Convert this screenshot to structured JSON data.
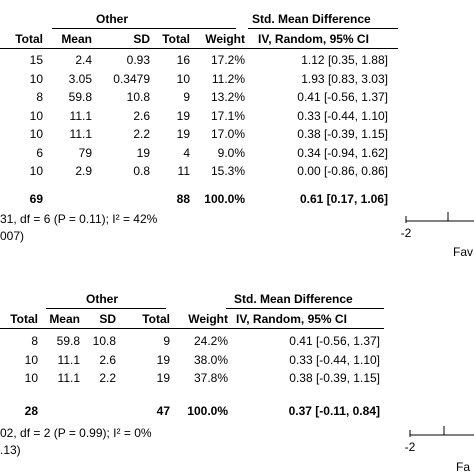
{
  "chart_data": [
    {
      "type": "table",
      "group_header": "Other",
      "effect_header": "Std. Mean Difference",
      "columns": [
        "Total",
        "Mean",
        "SD",
        "Total",
        "Weight",
        "IV, Random, 95% CI"
      ],
      "rows": [
        {
          "total1": "15",
          "mean": "2.4",
          "sd": "0.93",
          "total2": "16",
          "weight": "17.2%",
          "ci": "1.12 [0.35, 1.88]",
          "est": 1.12,
          "lo": 0.35,
          "hi": 1.88
        },
        {
          "total1": "10",
          "mean": "3.05",
          "sd": "0.3479",
          "total2": "10",
          "weight": "11.2%",
          "ci": "1.93 [0.83, 3.03]",
          "est": 1.93,
          "lo": 0.83,
          "hi": 3.03
        },
        {
          "total1": "8",
          "mean": "59.8",
          "sd": "10.8",
          "total2": "9",
          "weight": "13.2%",
          "ci": "0.41 [-0.56, 1.37]",
          "est": 0.41,
          "lo": -0.56,
          "hi": 1.37
        },
        {
          "total1": "10",
          "mean": "11.1",
          "sd": "2.6",
          "total2": "19",
          "weight": "17.1%",
          "ci": "0.33 [-0.44, 1.10]",
          "est": 0.33,
          "lo": -0.44,
          "hi": 1.1
        },
        {
          "total1": "10",
          "mean": "11.1",
          "sd": "2.2",
          "total2": "19",
          "weight": "17.0%",
          "ci": "0.38 [-0.39, 1.15]",
          "est": 0.38,
          "lo": -0.39,
          "hi": 1.15
        },
        {
          "total1": "6",
          "mean": "79",
          "sd": "19",
          "total2": "4",
          "weight": "9.0%",
          "ci": "0.34 [-0.94, 1.62]",
          "est": 0.34,
          "lo": -0.94,
          "hi": 1.62
        },
        {
          "total1": "10",
          "mean": "2.9",
          "sd": "0.8",
          "total2": "11",
          "weight": "15.3%",
          "ci": "0.00 [-0.86, 0.86]",
          "est": 0.0,
          "lo": -0.86,
          "hi": 0.86
        }
      ],
      "total": {
        "total1": "69",
        "total2": "88",
        "weight": "100.0%",
        "ci": "0.61 [0.17, 1.06]",
        "est": 0.61,
        "lo": 0.17,
        "hi": 1.06
      },
      "heterogeneity": "31, df = 6 (P = 0.11); I² = 42%",
      "overall_test": "007)",
      "axis": {
        "ticks": [
          -2
        ],
        "tick_labels": [
          "-2"
        ],
        "favours_label": "Fav"
      }
    },
    {
      "type": "table",
      "group_header": "Other",
      "effect_header": "Std. Mean Difference",
      "columns": [
        "Total",
        "Mean",
        "SD",
        "Total",
        "Weight",
        "IV, Random, 95% CI"
      ],
      "rows": [
        {
          "total1": "8",
          "mean": "59.8",
          "sd": "10.8",
          "total2": "9",
          "weight": "24.2%",
          "ci": "0.41 [-0.56, 1.37]",
          "est": 0.41,
          "lo": -0.56,
          "hi": 1.37
        },
        {
          "total1": "10",
          "mean": "11.1",
          "sd": "2.6",
          "total2": "19",
          "weight": "38.0%",
          "ci": "0.33 [-0.44, 1.10]",
          "est": 0.33,
          "lo": -0.44,
          "hi": 1.1
        },
        {
          "total1": "10",
          "mean": "11.1",
          "sd": "2.2",
          "total2": "19",
          "weight": "37.8%",
          "ci": "0.38 [-0.39, 1.15]",
          "est": 0.38,
          "lo": -0.39,
          "hi": 1.15
        }
      ],
      "total": {
        "total1": "28",
        "total2": "47",
        "weight": "100.0%",
        "ci": "0.37 [-0.11, 0.84]",
        "est": 0.37,
        "lo": -0.11,
        "hi": 0.84
      },
      "heterogeneity": "02, df = 2 (P = 0.99); I² = 0%",
      "overall_test": ".13)",
      "axis": {
        "ticks": [
          -2
        ],
        "tick_labels": [
          "-2"
        ],
        "favours_label": "Fa"
      }
    }
  ]
}
